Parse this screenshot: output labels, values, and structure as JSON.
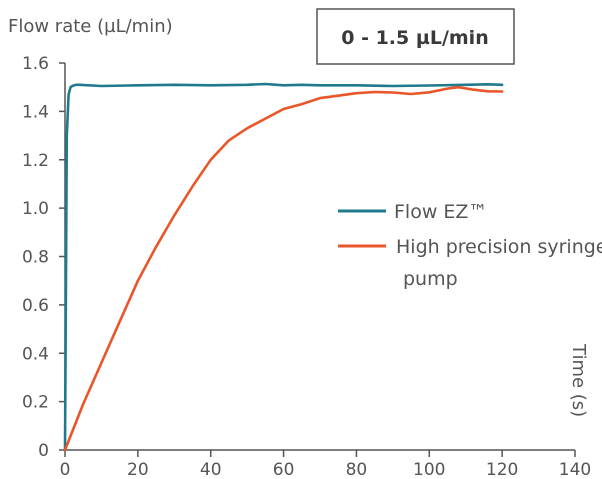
{
  "chart_data": {
    "type": "line",
    "title": "",
    "ylabel": "Flow rate (µL/min)",
    "xlabel": "Time (s)",
    "annotation": "0 - 1.5 µL/min",
    "xlim": [
      0,
      140
    ],
    "ylim": [
      0,
      1.6
    ],
    "x_ticks": [
      "0",
      "20",
      "40",
      "60",
      "80",
      "100",
      "120",
      "140"
    ],
    "y_ticks": [
      "0",
      "0.2",
      "0.4",
      "0.6",
      "0.8",
      "1.0",
      "1.2",
      "1.4",
      "1.6"
    ],
    "grid": false,
    "legend_position": "right",
    "series": [
      {
        "name": "Flow EZ™",
        "color": "#1f7a8c",
        "x": [
          0,
          0.5,
          1,
          1.5,
          2,
          3,
          4,
          10,
          20,
          30,
          40,
          50,
          55,
          60,
          65,
          70,
          80,
          90,
          100,
          110,
          116,
          120
        ],
        "y": [
          0,
          1.3,
          1.47,
          1.5,
          1.505,
          1.51,
          1.51,
          1.505,
          1.508,
          1.51,
          1.508,
          1.51,
          1.513,
          1.508,
          1.51,
          1.508,
          1.508,
          1.505,
          1.507,
          1.51,
          1.512,
          1.51
        ]
      },
      {
        "name": "High precision syringe pump",
        "color": "#e8562a",
        "x": [
          0,
          5,
          10,
          15,
          20,
          25,
          30,
          35,
          40,
          45,
          50,
          55,
          60,
          65,
          70,
          75,
          80,
          85,
          90,
          95,
          100,
          105,
          108,
          112,
          116,
          120
        ],
        "y": [
          0,
          0.19,
          0.36,
          0.53,
          0.7,
          0.84,
          0.97,
          1.09,
          1.2,
          1.28,
          1.33,
          1.37,
          1.41,
          1.43,
          1.455,
          1.465,
          1.475,
          1.48,
          1.478,
          1.472,
          1.479,
          1.494,
          1.5,
          1.49,
          1.483,
          1.482
        ]
      }
    ]
  }
}
